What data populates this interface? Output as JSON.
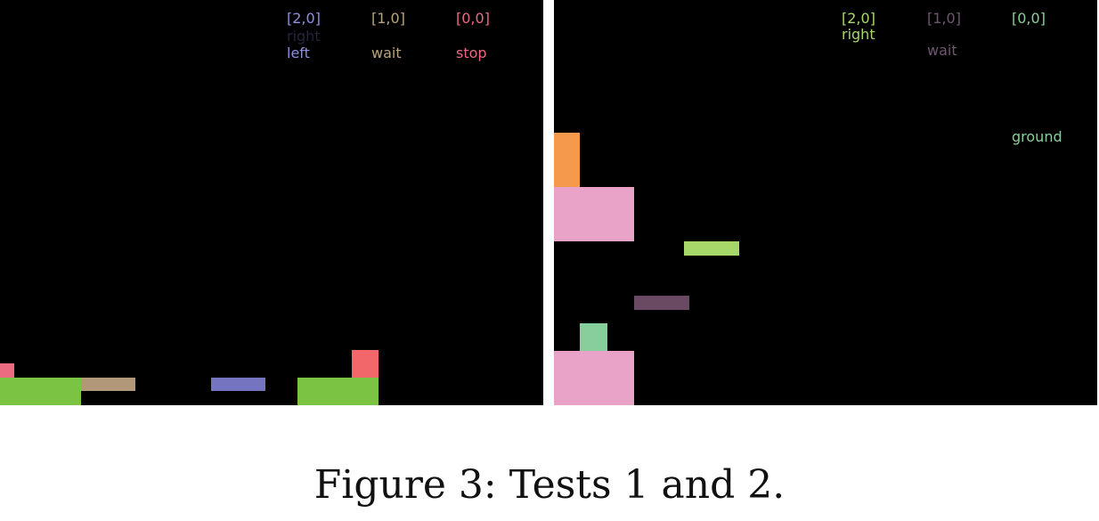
{
  "caption": "Figure 3: Tests 1 and 2.",
  "test1": {
    "labels": {
      "col20_id": "[2,0]",
      "col20_faint": "right",
      "col20_action": "left",
      "col10_id": "[1,0]",
      "col10_action": "wait",
      "col00_id": "[0,0]",
      "col00_action": "stop"
    },
    "colors": {
      "col20": "#8d8fe0",
      "col20_faint": "#24243c",
      "col10": "#b9a27f",
      "col00": "#e86a80",
      "ground_green": "#7bc443",
      "tan": "#b19879",
      "blue": "#7474c1",
      "red": "#f2676a",
      "pink_small": "#ed6b80"
    }
  },
  "test2": {
    "labels": {
      "col20_id": "[2,0]",
      "col20_action": "right",
      "col10_id": "[1,0]",
      "col10_action": "wait",
      "col00_id": "[0,0]",
      "col00_action": "ground"
    },
    "colors": {
      "col20": "#a6d86a",
      "col10": "#6e5670",
      "col00": "#87cf9a",
      "orange": "#f59a4d",
      "pink": "#e9a2c8",
      "lime": "#a7d768",
      "purple": "#6a4a63",
      "mint": "#86cf9c"
    }
  }
}
